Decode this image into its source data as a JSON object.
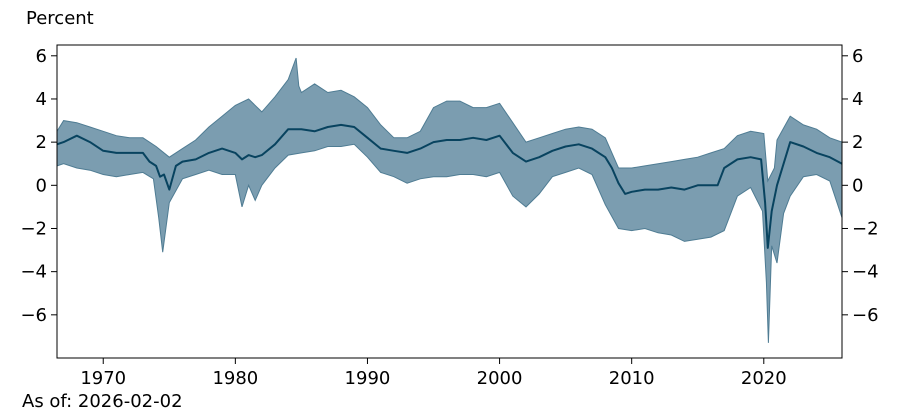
{
  "chart_data": {
    "type": "area",
    "title": "",
    "ylabel": "Percent",
    "xlabel": "",
    "footnote": "As of: 2026-02-02",
    "xlim": [
      1966.5,
      2025.92
    ],
    "ylim": [
      -8.0,
      6.5
    ],
    "x_ticks": [
      1970,
      1980,
      1990,
      2000,
      2010,
      2020
    ],
    "y_ticks": [
      6,
      4,
      2,
      0,
      -2,
      -4,
      -6
    ],
    "y_tick_labels": [
      "6",
      "4",
      "2",
      "0",
      "−2",
      "−4",
      "−6"
    ],
    "grid": false,
    "legend": "none",
    "colors": {
      "band": "#7b9db0",
      "band_edge": "#4f7c93",
      "line": "#08435f"
    },
    "series": [
      {
        "role": "median line",
        "x": [
          1966.5,
          1967,
          1968,
          1969,
          1970,
          1971,
          1972,
          1973,
          1973.5,
          1974,
          1974.3,
          1974.6,
          1975,
          1975.5,
          1976,
          1977,
          1978,
          1979,
          1980,
          1980.5,
          1981,
          1981.5,
          1982,
          1983,
          1984,
          1985,
          1986,
          1987,
          1988,
          1989,
          1990,
          1991,
          1992,
          1993,
          1994,
          1995,
          1996,
          1997,
          1998,
          1999,
          2000,
          2001,
          2002,
          2003,
          2004,
          2005,
          2006,
          2007,
          2008,
          2008.5,
          2009,
          2009.5,
          2010,
          2011,
          2012,
          2013,
          2014,
          2015,
          2016,
          2016.5,
          2017,
          2018,
          2019,
          2019.8,
          2020.1,
          2020.3,
          2020.6,
          2021,
          2021.5,
          2022,
          2023,
          2024,
          2025,
          2025.92
        ],
        "y": [
          1.9,
          2.0,
          2.3,
          2.0,
          1.6,
          1.5,
          1.5,
          1.5,
          1.1,
          0.9,
          0.4,
          0.5,
          -0.2,
          0.9,
          1.1,
          1.2,
          1.5,
          1.7,
          1.5,
          1.2,
          1.4,
          1.3,
          1.4,
          1.9,
          2.6,
          2.6,
          2.5,
          2.7,
          2.8,
          2.7,
          2.2,
          1.7,
          1.6,
          1.5,
          1.7,
          2.0,
          2.1,
          2.1,
          2.2,
          2.1,
          2.3,
          1.5,
          1.1,
          1.3,
          1.6,
          1.8,
          1.9,
          1.7,
          1.3,
          0.8,
          0.1,
          -0.4,
          -0.3,
          -0.2,
          -0.2,
          -0.1,
          -0.2,
          0.0,
          0.0,
          0.0,
          0.8,
          1.2,
          1.3,
          1.2,
          -0.8,
          -2.9,
          -1.2,
          0.0,
          1.0,
          2.0,
          1.8,
          1.5,
          1.3,
          1.0
        ]
      },
      {
        "role": "band upper",
        "x": [
          1966.5,
          1967,
          1968,
          1969,
          1970,
          1971,
          1972,
          1973,
          1974,
          1975,
          1976,
          1977,
          1978,
          1979,
          1980,
          1981,
          1982,
          1983,
          1984,
          1984.6,
          1984.8,
          1985,
          1986,
          1987,
          1988,
          1989,
          1990,
          1991,
          1992,
          1993,
          1994,
          1995,
          1996,
          1997,
          1998,
          1999,
          2000,
          2001,
          2002,
          2003,
          2004,
          2005,
          2006,
          2007,
          2008,
          2009,
          2010,
          2011,
          2012,
          2013,
          2014,
          2015,
          2016,
          2017,
          2018,
          2019,
          2020,
          2020.3,
          2020.8,
          2021,
          2022,
          2023,
          2024,
          2025,
          2025.92
        ],
        "y": [
          2.5,
          3.0,
          2.9,
          2.7,
          2.5,
          2.3,
          2.2,
          2.2,
          1.8,
          1.3,
          1.7,
          2.1,
          2.7,
          3.2,
          3.7,
          4.0,
          3.4,
          4.1,
          4.9,
          5.9,
          4.6,
          4.3,
          4.7,
          4.3,
          4.4,
          4.1,
          3.6,
          2.8,
          2.2,
          2.2,
          2.5,
          3.6,
          3.9,
          3.9,
          3.6,
          3.6,
          3.8,
          2.9,
          2.0,
          2.2,
          2.4,
          2.6,
          2.7,
          2.6,
          2.2,
          0.8,
          0.8,
          0.9,
          1.0,
          1.1,
          1.2,
          1.3,
          1.5,
          1.7,
          2.3,
          2.5,
          2.4,
          0.2,
          0.8,
          2.1,
          3.2,
          2.8,
          2.6,
          2.2,
          2.0
        ]
      },
      {
        "role": "band lower",
        "x": [
          1966.5,
          1967,
          1968,
          1969,
          1970,
          1971,
          1972,
          1973,
          1973.8,
          1974.2,
          1974.5,
          1975,
          1976,
          1977,
          1978,
          1979,
          1980,
          1980.5,
          1981,
          1981.5,
          1982,
          1983,
          1984,
          1985,
          1986,
          1987,
          1988,
          1989,
          1990,
          1991,
          1992,
          1993,
          1994,
          1995,
          1996,
          1997,
          1998,
          1999,
          2000,
          2001,
          2002,
          2003,
          2004,
          2005,
          2006,
          2007,
          2008,
          2009,
          2010,
          2011,
          2012,
          2013,
          2014,
          2015,
          2016,
          2017,
          2018,
          2019,
          2019.9,
          2020.2,
          2020.35,
          2020.6,
          2021,
          2021.5,
          2022,
          2023,
          2024,
          2025,
          2025.92
        ],
        "y": [
          0.9,
          1.0,
          0.8,
          0.7,
          0.5,
          0.4,
          0.5,
          0.6,
          0.3,
          -1.5,
          -3.1,
          -0.8,
          0.3,
          0.5,
          0.7,
          0.5,
          0.5,
          -1.0,
          0.0,
          -0.7,
          0.0,
          0.8,
          1.4,
          1.5,
          1.6,
          1.8,
          1.8,
          1.9,
          1.3,
          0.6,
          0.4,
          0.1,
          0.3,
          0.4,
          0.4,
          0.5,
          0.5,
          0.4,
          0.6,
          -0.5,
          -1.0,
          -0.4,
          0.4,
          0.6,
          0.8,
          0.5,
          -0.9,
          -2.0,
          -2.1,
          -2.0,
          -2.2,
          -2.3,
          -2.6,
          -2.5,
          -2.4,
          -2.1,
          -0.5,
          -0.1,
          -1.2,
          -4.5,
          -7.3,
          -2.8,
          -3.6,
          -1.3,
          -0.5,
          0.4,
          0.5,
          0.2,
          -1.5
        ]
      }
    ]
  }
}
